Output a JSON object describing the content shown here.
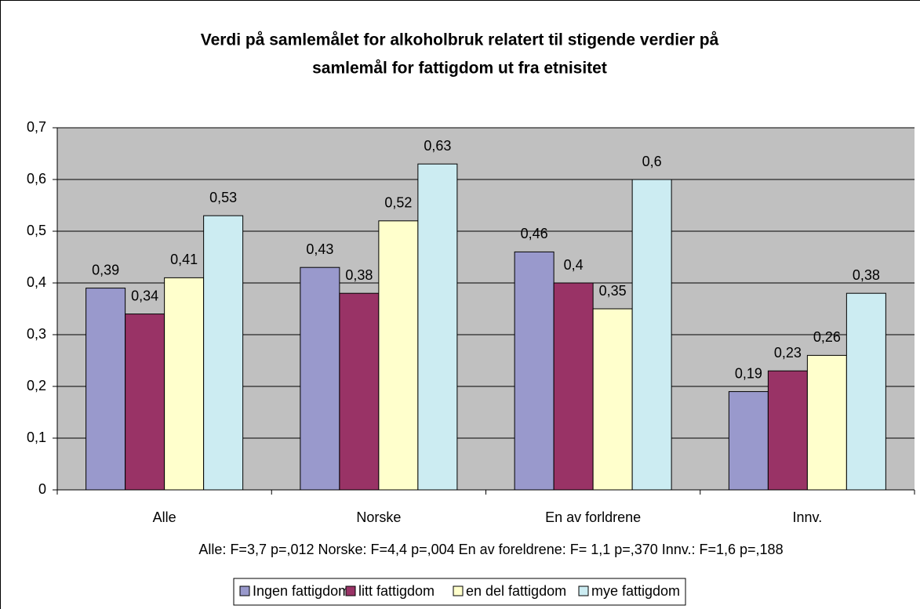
{
  "chart_data": {
    "type": "bar",
    "title": [
      "Verdi på samlemålet for alkoholbruk relatert til stigende verdier på",
      "samlemål for fattigdom ut fra etnisitet"
    ],
    "annotation": "Alle: F=3,7 p=,012  Norske: F=4,4 p=,004  En av foreldrene: F= 1,1 p=,370  Innv.: F=1,6 p=,188",
    "categories": [
      "Alle",
      "Norske",
      "En av forldrene",
      "Innv."
    ],
    "series": [
      {
        "name": "Ingen fattigdom",
        "color": "#9999cc",
        "values": [
          0.39,
          0.43,
          0.46,
          0.19
        ],
        "value_labels": [
          "0,39",
          "0,43",
          "0,46",
          "0,19"
        ]
      },
      {
        "name": "litt fattigdom",
        "color": "#993366",
        "values": [
          0.34,
          0.38,
          0.4,
          0.23
        ],
        "value_labels": [
          "0,34",
          "0,38",
          "0,4",
          "0,23"
        ]
      },
      {
        "name": "en del fattigdom",
        "color": "#ffffcc",
        "values": [
          0.41,
          0.52,
          0.35,
          0.26
        ],
        "value_labels": [
          "0,41",
          "0,52",
          "0,35",
          "0,26"
        ]
      },
      {
        "name": "mye fattigdom",
        "color": "#ccecf2",
        "values": [
          0.53,
          0.63,
          0.6,
          0.38
        ],
        "value_labels": [
          "0,53",
          "0,63",
          "0,6",
          "0,38"
        ]
      }
    ],
    "ylim": [
      0,
      0.7
    ],
    "yticks": [
      {
        "value": 0,
        "label": "0"
      },
      {
        "value": 0.1,
        "label": "0,1"
      },
      {
        "value": 0.2,
        "label": "0,2"
      },
      {
        "value": 0.3,
        "label": "0,3"
      },
      {
        "value": 0.4,
        "label": "0,4"
      },
      {
        "value": 0.5,
        "label": "0,5"
      },
      {
        "value": 0.6,
        "label": "0,6"
      },
      {
        "value": 0.7,
        "label": "0,7"
      }
    ],
    "grid": true,
    "legend": "bottom",
    "plot_background": "#c0c0c0"
  }
}
